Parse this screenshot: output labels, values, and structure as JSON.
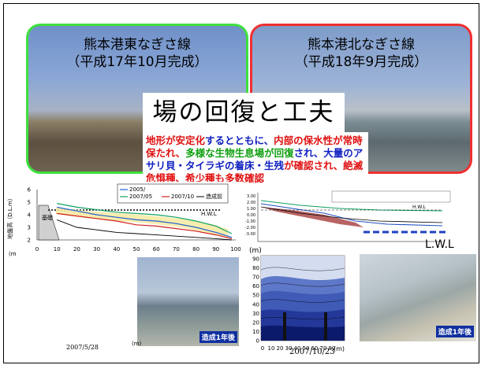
{
  "panels": {
    "left_title": "熊本港東なぎさ線",
    "left_subtitle": "（平成17年10月完成）",
    "right_title": "熊本港北なぎさ線",
    "right_subtitle": "（平成18年9月完成）"
  },
  "heading": "場の回復と工夫",
  "description": {
    "p1": "地形が安定化",
    "p2": "するとともに、",
    "p3": "内部の保水性が常時保たれ、",
    "p4": "多様な生物生息場が回復",
    "p5": "され、",
    "p6": "大量のアサリ貝・タイラギの着床・生残",
    "p7": "が確認され、絶滅危惧種、希少種も多数確認"
  },
  "chart_left": {
    "ylabel": "地盤高（D.L.m）",
    "y_ticks": [
      "6",
      "5",
      "4",
      "3",
      "2"
    ],
    "x_ticks": [
      "0",
      "10",
      "20",
      "30",
      "40",
      "50",
      "60",
      "70",
      "80",
      "90",
      "100"
    ],
    "x_unit": "(m",
    "legend": [
      "2005/",
      "2007/05",
      "2007/10",
      "造成前"
    ],
    "hwl": "H.W.L",
    "structure_label": "基礎"
  },
  "chart_right": {
    "lwl": "L.W.L",
    "hwl": "H.W.L",
    "x_unit": "(m)"
  },
  "contour": {
    "y_ticks": [
      "90",
      "80",
      "70",
      "60",
      "50",
      "40",
      "30",
      "20",
      "10",
      "0"
    ],
    "x_ticks": [
      "0",
      "10",
      "20",
      "30",
      "40",
      "50",
      "60",
      "70",
      "80"
    ],
    "x_unit": "(m)",
    "y_unit": "(m)"
  },
  "captions": {
    "date_left": "2007/5/28",
    "date_center": "2007/10/23",
    "m_label": "(m)"
  },
  "badges": {
    "left": "造成1年後",
    "right": "造成1年後"
  },
  "chart_data": [
    {
      "type": "line",
      "title": "",
      "xlabel": "",
      "ylabel": "地盤高（D.L.m）",
      "xlim": [
        0,
        100
      ],
      "ylim": [
        2,
        6
      ],
      "series": [
        {
          "name": "2005/",
          "x": [
            10,
            20,
            30,
            40,
            50,
            60,
            70,
            80,
            90,
            98
          ],
          "values": [
            4.6,
            4.3,
            4.0,
            3.8,
            3.6,
            3.5,
            3.3,
            3.0,
            2.6,
            2.2
          ]
        },
        {
          "name": "2007/05",
          "x": [
            10,
            20,
            30,
            40,
            50,
            60,
            70,
            80,
            90,
            98
          ],
          "values": [
            4.9,
            4.6,
            4.4,
            4.2,
            4.1,
            4.0,
            3.8,
            3.5,
            3.1,
            2.5
          ]
        },
        {
          "name": "2007/10",
          "x": [
            10,
            20,
            30,
            40,
            50,
            60,
            70,
            80,
            90,
            98
          ],
          "values": [
            4.1,
            3.9,
            3.7,
            3.5,
            3.2,
            3.1,
            2.9,
            2.7,
            2.4,
            2.1
          ]
        },
        {
          "name": "造成前",
          "x": [
            10,
            20,
            30,
            40,
            50,
            60,
            70,
            80,
            90,
            98
          ],
          "values": [
            3.6,
            3.0,
            2.8,
            2.6,
            2.5,
            2.4,
            2.3,
            2.2,
            2.1,
            2.0
          ]
        }
      ]
    }
  ]
}
